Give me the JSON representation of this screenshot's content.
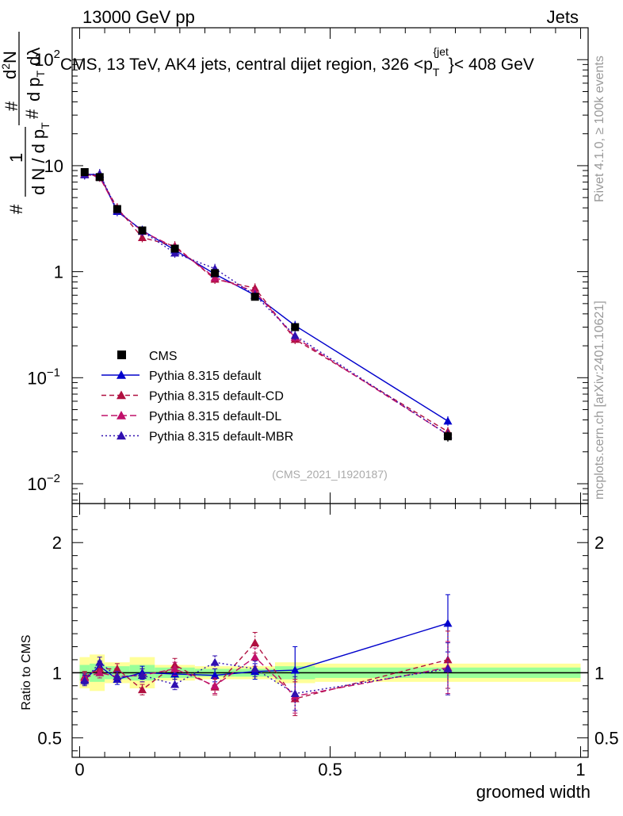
{
  "header": {
    "left": "13000 GeV pp",
    "right": "Jets"
  },
  "side_labels": {
    "rivet": "Rivet 4.1.0, ≥ 100k events",
    "mcplots": "mcplots.cern.ch [arXiv:2401.10621]"
  },
  "colors": {
    "cms": "#000000",
    "default": "#0000cc",
    "cd": "#b01040",
    "dl": "#c0106a",
    "mbr": "#3010b0",
    "band_inner": "#99ff99",
    "band_outer": "#ffff99"
  },
  "chart_data": {
    "type": "scatter",
    "title": "CMS, 13 TeV, AK4 jets, central dijet region, 326 <p_T^{jet}< 408 GeV",
    "title_parts": {
      "main": "CMS, 13 TeV, AK4 jets, central dijet region, 326 <p",
      "sub": "T",
      "sup": "{jet",
      "tail": "}< 408 GeV"
    },
    "xlabel": "groomed width",
    "ylabel_main": {
      "hash": "#",
      "one": "1",
      "den": "d N / d p",
      "den_sub": "T",
      "hash2": "#",
      "num": "d",
      "num_sup": "2",
      "num_tail": "N",
      "den2": "d p",
      "den2_sub": "T",
      "den2_tail": "dλ"
    },
    "ylabel_ratio": "Ratio to CMS",
    "watermark": "(CMS_2021_I1920187)",
    "xlim": [
      -0.015,
      1.015
    ],
    "ylim_main": [
      0.0065,
      200
    ],
    "ylim_ratio": [
      0.35,
      2.3
    ],
    "x_ticks": [
      "0",
      "0.5",
      "1"
    ],
    "x_tick_values": [
      0,
      0.5,
      1
    ],
    "y_ticks_main": [
      {
        "base": "10",
        "exp": "−2",
        "value": 0.01
      },
      {
        "base": "10",
        "exp": "−1",
        "value": 0.1
      },
      {
        "base": "1",
        "exp": "",
        "value": 1
      },
      {
        "base": "10",
        "exp": "",
        "value": 10
      },
      {
        "base": "10",
        "exp": "2",
        "value": 100
      }
    ],
    "y_ticks_ratio": [
      {
        "label": "0.5",
        "value": 0.5
      },
      {
        "label": "1",
        "value": 1
      },
      {
        "label": "2",
        "value": 2
      }
    ],
    "x": [
      0.01,
      0.04,
      0.075,
      0.125,
      0.19,
      0.27,
      0.35,
      0.43,
      0.735
    ],
    "bins": [
      [
        0,
        0.02
      ],
      [
        0.02,
        0.05
      ],
      [
        0.05,
        0.1
      ],
      [
        0.1,
        0.15
      ],
      [
        0.15,
        0.23
      ],
      [
        0.23,
        0.31
      ],
      [
        0.31,
        0.39
      ],
      [
        0.39,
        0.47
      ],
      [
        0.47,
        1.0
      ]
    ],
    "band_inner": [
      0.06,
      0.07,
      0.05,
      0.06,
      0.04,
      0.03,
      0.03,
      0.05,
      0.04
    ],
    "band_outer": [
      0.12,
      0.14,
      0.08,
      0.12,
      0.06,
      0.05,
      0.05,
      0.08,
      0.07
    ],
    "cms": {
      "name": "CMS",
      "values": [
        8.7,
        7.8,
        3.9,
        2.45,
        1.65,
        0.97,
        0.58,
        0.3,
        0.028
      ],
      "errors": [
        0.4,
        0.4,
        0.2,
        0.12,
        0.08,
        0.05,
        0.03,
        0.02,
        0.003
      ]
    },
    "series": [
      {
        "name": "Pythia 8.315 default",
        "key": "default",
        "style": "solid",
        "values": [
          8.3,
          8.2,
          3.7,
          2.45,
          1.6,
          0.95,
          0.6,
          0.31,
          0.039
        ],
        "ratio": [
          0.95,
          1.05,
          0.95,
          1.0,
          0.99,
          0.98,
          1.01,
          1.02,
          1.38
        ],
        "ratio_err": [
          0.04,
          0.04,
          0.04,
          0.05,
          0.04,
          0.05,
          0.06,
          0.18,
          0.22
        ]
      },
      {
        "name": "Pythia 8.315 default-CD",
        "key": "cd",
        "style": "6,4",
        "values": [
          8.4,
          7.9,
          4.0,
          2.1,
          1.75,
          0.85,
          0.7,
          0.23,
          0.031
        ],
        "ratio": [
          0.97,
          1.03,
          1.03,
          0.87,
          1.06,
          0.89,
          1.23,
          0.8,
          1.1
        ],
        "ratio_err": [
          0.04,
          0.04,
          0.04,
          0.04,
          0.05,
          0.06,
          0.08,
          0.13,
          0.22
        ]
      },
      {
        "name": "Pythia 8.315 default-DL",
        "key": "dl",
        "style": "8,4",
        "values": [
          8.3,
          7.8,
          3.8,
          2.4,
          1.7,
          0.88,
          0.65,
          0.24,
          0.029
        ],
        "ratio": [
          0.96,
          1.0,
          0.97,
          0.98,
          1.03,
          0.9,
          1.12,
          0.82,
          1.04
        ],
        "ratio_err": [
          0.04,
          0.04,
          0.04,
          0.05,
          0.05,
          0.06,
          0.07,
          0.13,
          0.2
        ]
      },
      {
        "name": "Pythia 8.315 default-MBR",
        "key": "mbr",
        "style": "2,3",
        "values": [
          8.2,
          8.4,
          3.8,
          2.4,
          1.5,
          1.07,
          0.6,
          0.25,
          0.029
        ],
        "ratio": [
          0.94,
          1.08,
          0.97,
          0.98,
          0.91,
          1.08,
          1.03,
          0.84,
          1.03
        ],
        "ratio_err": [
          0.04,
          0.04,
          0.04,
          0.05,
          0.04,
          0.05,
          0.06,
          0.13,
          0.2
        ]
      }
    ]
  }
}
